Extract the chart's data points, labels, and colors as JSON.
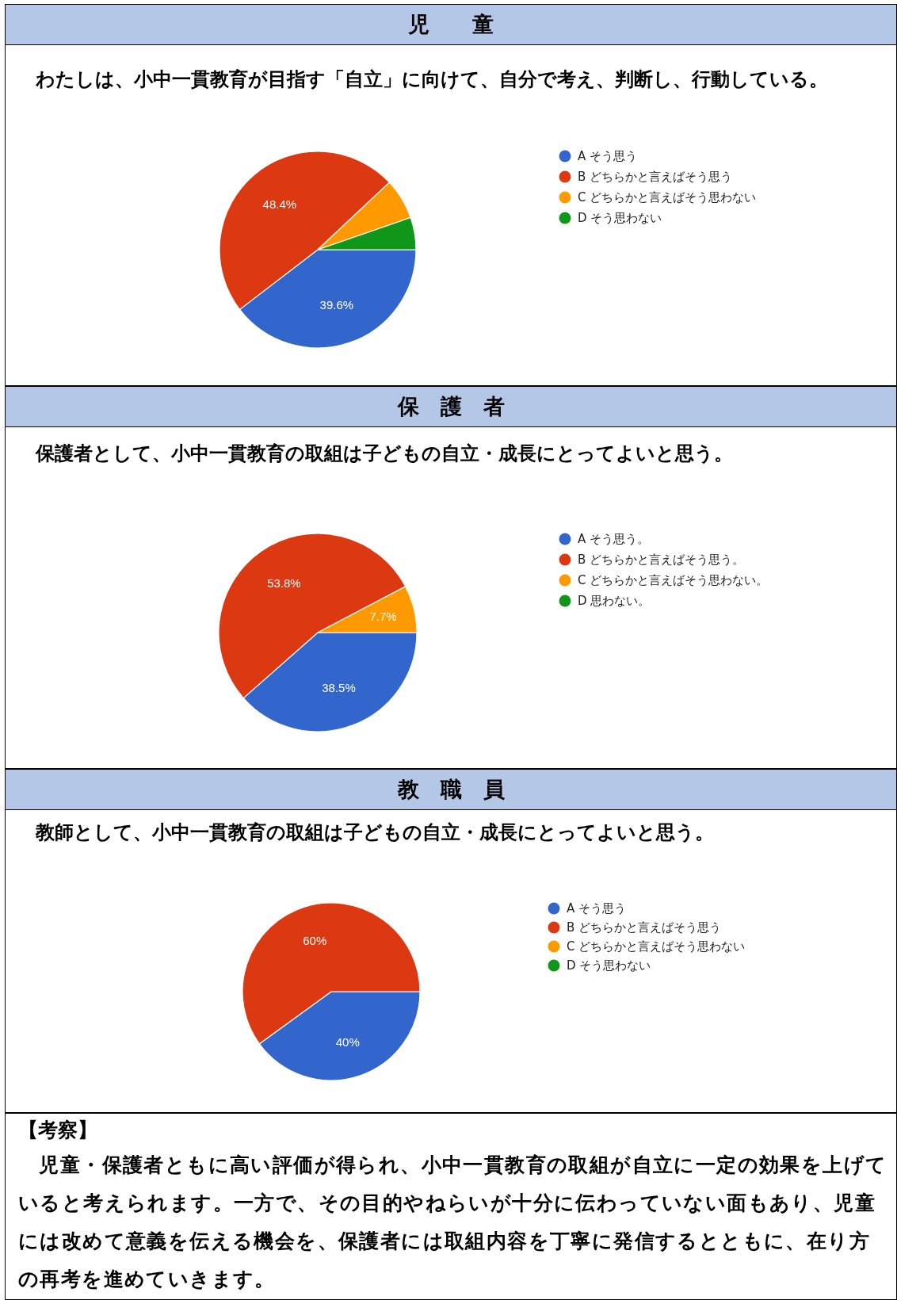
{
  "chart_data": [
    {
      "type": "pie",
      "title": "児　　童",
      "subtitle": "わたしは、小中一貫教育が目指す「自立」に向けて、自分で考え、判断し、行動している。",
      "categories": [
        "A そう思う",
        "B どちらかと言えばそう思う",
        "C どちらかと言えばそう思わない",
        "D そう思わない"
      ],
      "values": [
        39.6,
        48.4,
        6.7,
        5.3
      ],
      "colors": [
        "#3366cc",
        "#dc3912",
        "#ff9900",
        "#109618"
      ],
      "value_labels": [
        "39.6%",
        "48.4%",
        null,
        null
      ],
      "legend": "right"
    },
    {
      "type": "pie",
      "title": "保　護　者",
      "subtitle": "保護者として、小中一貫教育の取組は子どもの自立・成長にとってよいと思う。",
      "categories": [
        "A そう思う。",
        "B どちらかと言えばそう思う。",
        "C どちらかと言えばそう思わない。",
        "D 思わない。"
      ],
      "values": [
        38.5,
        53.8,
        7.7,
        0
      ],
      "colors": [
        "#3366cc",
        "#dc3912",
        "#ff9900",
        "#109618"
      ],
      "value_labels": [
        "38.5%",
        "53.8%",
        "7.7%",
        null
      ],
      "legend": "right"
    },
    {
      "type": "pie",
      "title": "教　職　員",
      "subtitle": "教師として、小中一貫教育の取組は子どもの自立・成長にとってよいと思う。",
      "categories": [
        "A そう思う",
        "B どちらかと言えばそう思う",
        "C どちらかと言えばそう思わない",
        "D そう思わない"
      ],
      "values": [
        40,
        60,
        0,
        0
      ],
      "colors": [
        "#3366cc",
        "#dc3912",
        "#ff9900",
        "#109618"
      ],
      "value_labels": [
        "40%",
        "60%",
        null,
        null
      ],
      "legend": "right"
    },
    {
      "type": "other",
      "title": "【考察】",
      "annotations": [
        "　児童・保護者ともに高い評価が得られ、小中一貫教育の取組が自立に一定の効果を上げていると考えられます。一方で、その目的やねらいが十分に伝わっていない面もあり、児童には改めて意義を伝える機会を、保護者には取組内容を丁寧に発信するとともに、在り方の再考を進めていきます。"
      ]
    }
  ]
}
